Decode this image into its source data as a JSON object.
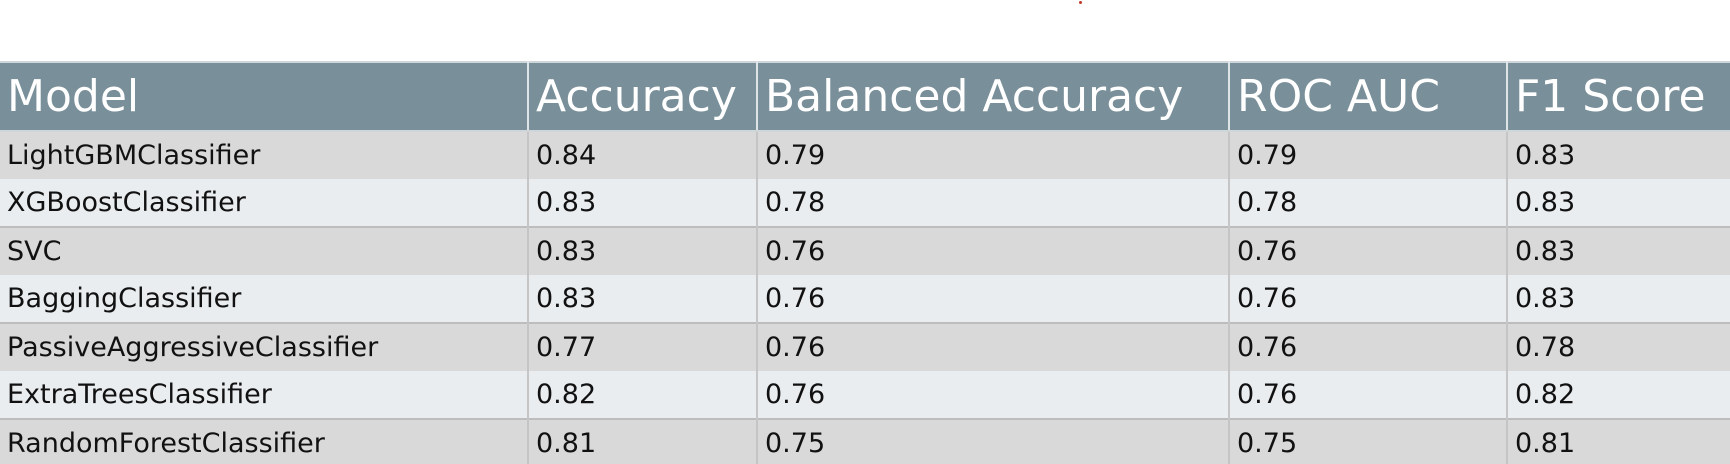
{
  "table": {
    "headers": [
      "Model",
      "Accuracy",
      "Balanced Accuracy",
      "ROC AUC",
      "F1 Score"
    ],
    "rows": [
      [
        "LightGBMClassifier",
        "0.84",
        "0.79",
        "0.79",
        "0.83"
      ],
      [
        "XGBoostClassifier",
        "0.83",
        "0.78",
        "0.78",
        "0.83"
      ],
      [
        "SVC",
        "0.83",
        "0.76",
        "0.76",
        "0.83"
      ],
      [
        "BaggingClassifier",
        "0.83",
        "0.76",
        "0.76",
        "0.83"
      ],
      [
        "PassiveAggressiveClassifier",
        "0.77",
        "0.76",
        "0.76",
        "0.78"
      ],
      [
        "ExtraTreesClassifier",
        "0.82",
        "0.76",
        "0.76",
        "0.82"
      ],
      [
        "RandomForestClassifier",
        "0.81",
        "0.75",
        "0.75",
        "0.81"
      ]
    ]
  },
  "colors": {
    "header_bg": "#798f99",
    "header_text": "#ffffff",
    "row_odd": "#d9d9d9",
    "row_even": "#e9edf0",
    "accent_dot": "#c0392b"
  }
}
